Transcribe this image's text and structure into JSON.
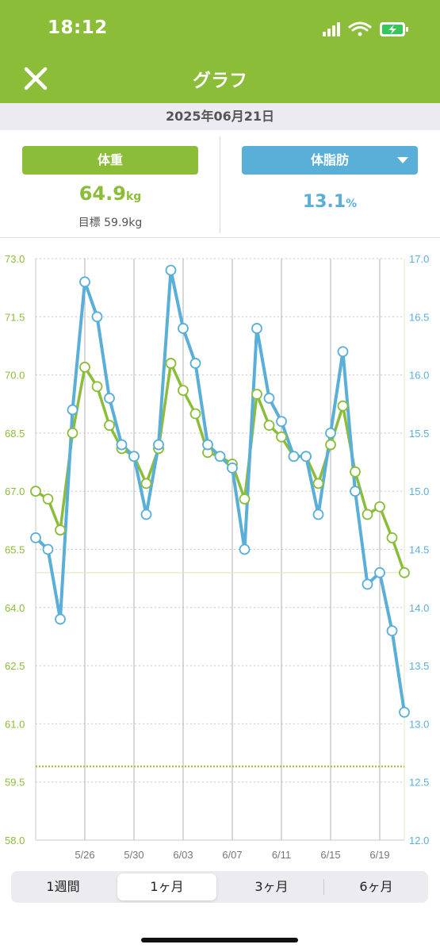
{
  "status_bar": {
    "time": "18:12"
  },
  "header": {
    "title": "グラフ"
  },
  "date": "2025年06月21日",
  "summary": {
    "weight": {
      "label": "体重",
      "value": "64.9",
      "unit": "kg",
      "goal": "目標 59.9kg"
    },
    "fat": {
      "label": "体脂肪",
      "value": "13.1",
      "unit": "%"
    }
  },
  "colors": {
    "accent_green": "#8bbd39",
    "accent_blue": "#5aafd9"
  },
  "tabs": [
    {
      "label": "1週間",
      "active": false
    },
    {
      "label": "1ヶ月",
      "active": true
    },
    {
      "label": "3ヶ月",
      "active": false
    },
    {
      "label": "6ヶ月",
      "active": false
    }
  ],
  "chart_data": {
    "type": "line",
    "x": [
      "5/22",
      "5/23",
      "5/24",
      "5/25",
      "5/26",
      "5/27",
      "5/28",
      "5/29",
      "5/30",
      "5/31",
      "6/01",
      "6/02",
      "6/03",
      "6/04",
      "6/05",
      "6/06",
      "6/07",
      "6/08",
      "6/09",
      "6/10",
      "6/11",
      "6/12",
      "6/13",
      "6/14",
      "6/15",
      "6/16",
      "6/17",
      "6/18",
      "6/19",
      "6/20",
      "6/21"
    ],
    "x_tick_labels": [
      "5/26",
      "5/30",
      "6/03",
      "6/07",
      "6/11",
      "6/15",
      "6/19"
    ],
    "series": [
      {
        "axis": "left",
        "color": "#8bbd39",
        "values": [
          67.0,
          66.8,
          66.0,
          68.5,
          70.2,
          69.7,
          68.7,
          68.1,
          67.9,
          67.2,
          68.1,
          70.3,
          69.6,
          69.0,
          68.0,
          67.9,
          67.7,
          66.8,
          69.5,
          68.7,
          68.4,
          67.9,
          67.9,
          67.2,
          68.2,
          69.2,
          67.5,
          66.4,
          66.6,
          65.8,
          64.9
        ]
      },
      {
        "axis": "right",
        "color": "#5aafd9",
        "values": [
          14.6,
          14.5,
          13.9,
          15.7,
          16.8,
          16.5,
          15.8,
          15.4,
          15.3,
          14.8,
          15.4,
          16.9,
          16.4,
          16.1,
          15.4,
          15.3,
          15.2,
          14.5,
          16.4,
          15.8,
          15.6,
          15.3,
          15.3,
          14.8,
          15.5,
          16.2,
          15.0,
          14.2,
          14.3,
          13.8,
          13.1
        ]
      }
    ],
    "y_left": {
      "lim": [
        58.0,
        73.0
      ],
      "ticks": [
        "58.0",
        "59.5",
        "61.0",
        "62.5",
        "64.0",
        "65.5",
        "67.0",
        "68.5",
        "70.0",
        "71.5",
        "73.0"
      ]
    },
    "y_right": {
      "lim": [
        12.0,
        17.0
      ],
      "ticks": [
        "12.0",
        "12.5",
        "13.0",
        "13.5",
        "14.0",
        "14.5",
        "15.0",
        "15.5",
        "16.0",
        "16.5",
        "17.0"
      ]
    },
    "reference_lines": [
      {
        "axis": "left",
        "value": 64.9,
        "style": "solid"
      },
      {
        "axis": "left",
        "value": 59.9,
        "style": "dotted"
      }
    ],
    "grid": true
  }
}
